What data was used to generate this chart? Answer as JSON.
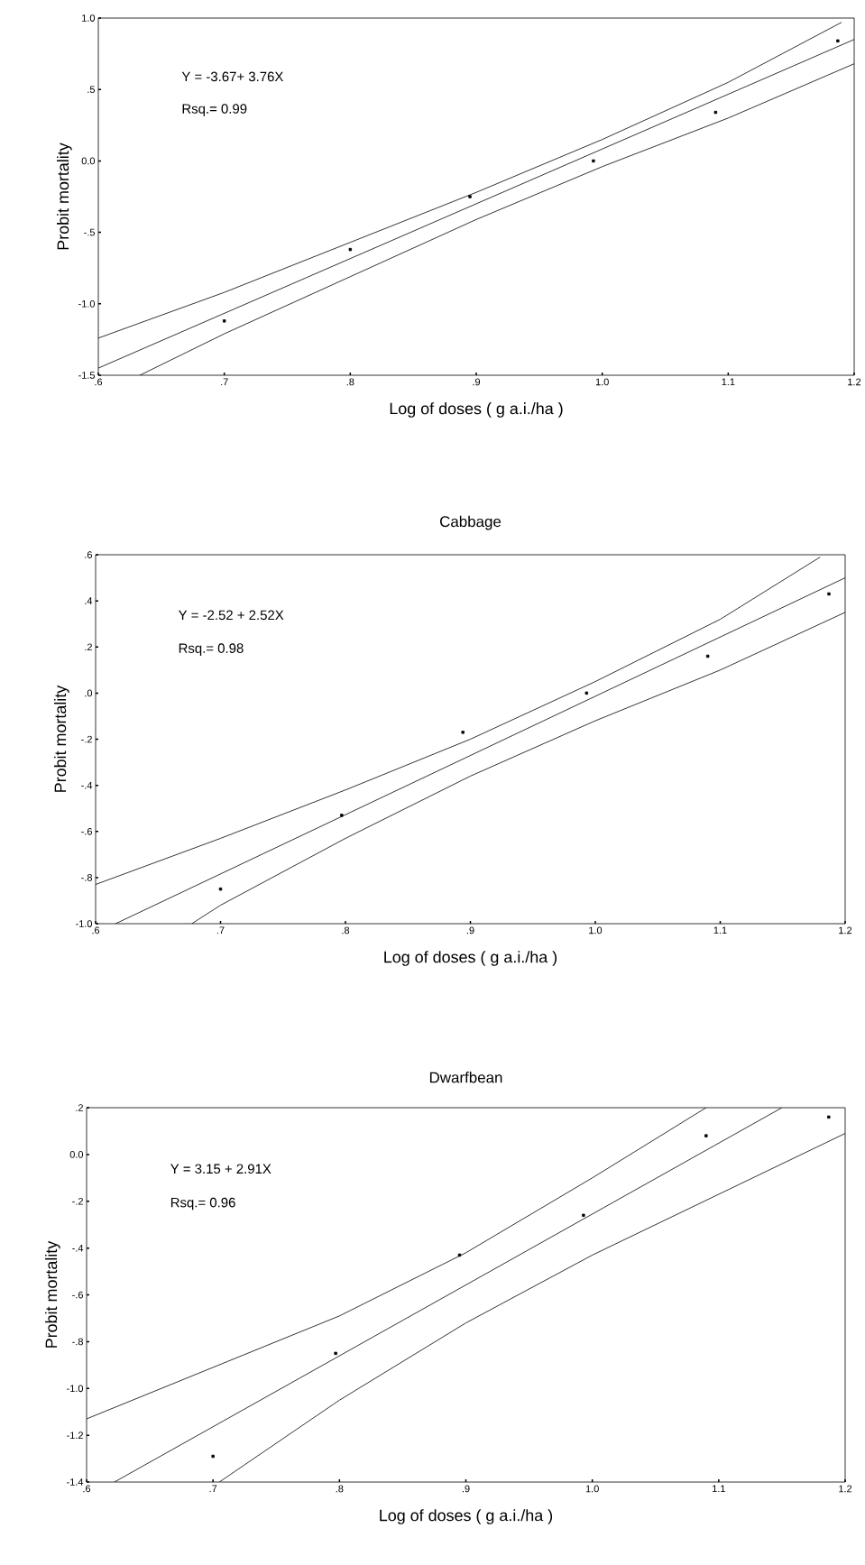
{
  "chart_data": [
    {
      "type": "scatter",
      "xlabel": "Log of doses ( g a.i./ha )",
      "ylabel": "Probit mortality",
      "xlim": [
        0.6,
        1.2
      ],
      "ylim": [
        -1.5,
        1.0
      ],
      "xticks": [
        {
          "value": 0.6,
          "label": ".6"
        },
        {
          "value": 0.7,
          "label": ".7"
        },
        {
          "value": 0.8,
          "label": ".8"
        },
        {
          "value": 0.9,
          "label": ".9"
        },
        {
          "value": 1.0,
          "label": "1.0"
        },
        {
          "value": 1.1,
          "label": "1.1"
        },
        {
          "value": 1.2,
          "label": "1.2"
        }
      ],
      "yticks": [
        {
          "value": -1.5,
          "label": "-1.5"
        },
        {
          "value": -1.0,
          "label": "-1.0"
        },
        {
          "value": -0.5,
          "label": "-.5"
        },
        {
          "value": 0.0,
          "label": "0.0"
        },
        {
          "value": 0.5,
          "label": ".5"
        },
        {
          "value": 1.0,
          "label": "1.0"
        }
      ],
      "annotations": [
        "Y = -3.67+ 3.76X",
        "Rsq.= 0.99"
      ],
      "series": [
        {
          "type": "scatter",
          "marker": "square",
          "color": "#000000",
          "x": [
            0.7,
            0.8,
            0.895,
            0.993,
            1.09,
            1.187
          ],
          "values": [
            -1.12,
            -0.62,
            -0.25,
            0.0,
            0.34,
            0.84
          ]
        },
        {
          "type": "line",
          "marker": "none",
          "line_style": "solid",
          "color": "#000000",
          "x": [
            0.6,
            1.2
          ],
          "values": [
            -1.45,
            0.85
          ]
        },
        {
          "type": "line",
          "marker": "none",
          "line_style": "solid",
          "color": "#000000",
          "x": [
            0.6,
            0.7,
            0.8,
            0.9,
            1.0,
            1.1,
            1.19
          ],
          "values": [
            -1.24,
            -0.92,
            -0.57,
            -0.22,
            0.15,
            0.55,
            0.97
          ]
        },
        {
          "type": "line",
          "marker": "none",
          "line_style": "solid",
          "color": "#000000",
          "x": [
            0.633,
            0.7,
            0.8,
            0.9,
            1.0,
            1.1,
            1.2
          ],
          "values": [
            -1.5,
            -1.21,
            -0.81,
            -0.41,
            -0.04,
            0.3,
            0.68
          ]
        }
      ]
    },
    {
      "type": "scatter",
      "title": "Cabbage",
      "xlabel": "Log of doses ( g a.i./ha )",
      "ylabel": "Probit mortality",
      "xlim": [
        0.6,
        1.2
      ],
      "ylim": [
        -1.0,
        0.6
      ],
      "xticks": [
        {
          "value": 0.6,
          "label": ".6"
        },
        {
          "value": 0.7,
          "label": ".7"
        },
        {
          "value": 0.8,
          "label": ".8"
        },
        {
          "value": 0.9,
          "label": ".9"
        },
        {
          "value": 1.0,
          "label": "1.0"
        },
        {
          "value": 1.1,
          "label": "1.1"
        },
        {
          "value": 1.2,
          "label": "1.2"
        }
      ],
      "yticks": [
        {
          "value": -1.0,
          "label": "-1.0"
        },
        {
          "value": -0.8,
          "label": "-.8"
        },
        {
          "value": -0.6,
          "label": "-.6"
        },
        {
          "value": -0.4,
          "label": "-.4"
        },
        {
          "value": -0.2,
          "label": "-.2"
        },
        {
          "value": 0.0,
          "label": ".0"
        },
        {
          "value": 0.2,
          "label": ".2"
        },
        {
          "value": 0.4,
          "label": ".4"
        },
        {
          "value": 0.6,
          "label": ".6"
        }
      ],
      "annotations": [
        "Y = -2.52 + 2.52X",
        "Rsq.= 0.98"
      ],
      "series": [
        {
          "type": "scatter",
          "marker": "square",
          "color": "#000000",
          "x": [
            0.7,
            0.797,
            0.894,
            0.993,
            1.09,
            1.187
          ],
          "values": [
            -0.85,
            -0.53,
            -0.17,
            0.0,
            0.16,
            0.43
          ]
        },
        {
          "type": "line",
          "marker": "none",
          "line_style": "solid",
          "color": "#000000",
          "x": [
            0.616,
            1.2
          ],
          "values": [
            -1.0,
            0.5
          ]
        },
        {
          "type": "line",
          "marker": "none",
          "line_style": "solid",
          "color": "#000000",
          "x": [
            0.6,
            0.7,
            0.8,
            0.9,
            1.0,
            1.1,
            1.18
          ],
          "values": [
            -0.83,
            -0.63,
            -0.42,
            -0.2,
            0.05,
            0.32,
            0.59
          ]
        },
        {
          "type": "line",
          "marker": "none",
          "line_style": "solid",
          "color": "#000000",
          "x": [
            0.677,
            0.7,
            0.8,
            0.9,
            1.0,
            1.1,
            1.2
          ],
          "values": [
            -1.0,
            -0.92,
            -0.63,
            -0.36,
            -0.12,
            0.1,
            0.35
          ]
        }
      ]
    },
    {
      "type": "scatter",
      "title": "Dwarfbean",
      "xlabel": "Log of doses ( g a.i./ha )",
      "ylabel": "Probit mortality",
      "xlim": [
        0.6,
        1.2
      ],
      "ylim": [
        -1.4,
        0.2
      ],
      "xticks": [
        {
          "value": 0.6,
          "label": ".6"
        },
        {
          "value": 0.7,
          "label": ".7"
        },
        {
          "value": 0.8,
          "label": ".8"
        },
        {
          "value": 0.9,
          "label": ".9"
        },
        {
          "value": 1.0,
          "label": "1.0"
        },
        {
          "value": 1.1,
          "label": "1.1"
        },
        {
          "value": 1.2,
          "label": "1.2"
        }
      ],
      "yticks": [
        {
          "value": -1.4,
          "label": "-1.4"
        },
        {
          "value": -1.2,
          "label": "-1.2"
        },
        {
          "value": -1.0,
          "label": "-1.0"
        },
        {
          "value": -0.8,
          "label": "-.8"
        },
        {
          "value": -0.6,
          "label": "-.6"
        },
        {
          "value": -0.4,
          "label": "-.4"
        },
        {
          "value": -0.2,
          "label": "-.2"
        },
        {
          "value": 0.0,
          "label": "0.0"
        },
        {
          "value": 0.2,
          "label": ".2"
        }
      ],
      "annotations": [
        "Y = 3.15 + 2.91X",
        "Rsq.= 0.96"
      ],
      "series": [
        {
          "type": "scatter",
          "marker": "square",
          "color": "#000000",
          "x": [
            0.7,
            0.797,
            0.895,
            0.993,
            1.09,
            1.187
          ],
          "values": [
            -1.29,
            -0.85,
            -0.43,
            -0.26,
            0.08,
            0.16
          ]
        },
        {
          "type": "line",
          "marker": "none",
          "line_style": "solid",
          "color": "#000000",
          "x": [
            0.622,
            1.15
          ],
          "values": [
            -1.4,
            0.2
          ]
        },
        {
          "type": "line",
          "marker": "none",
          "line_style": "solid",
          "color": "#000000",
          "x": [
            0.6,
            0.7,
            0.8,
            0.9,
            1.0,
            1.09
          ],
          "values": [
            -1.13,
            -0.91,
            -0.69,
            -0.42,
            -0.1,
            0.2
          ]
        },
        {
          "type": "line",
          "marker": "none",
          "line_style": "solid",
          "color": "#000000",
          "x": [
            0.705,
            0.8,
            0.9,
            1.0,
            1.1,
            1.2
          ],
          "values": [
            -1.4,
            -1.05,
            -0.72,
            -0.43,
            -0.17,
            0.09
          ]
        }
      ]
    }
  ]
}
